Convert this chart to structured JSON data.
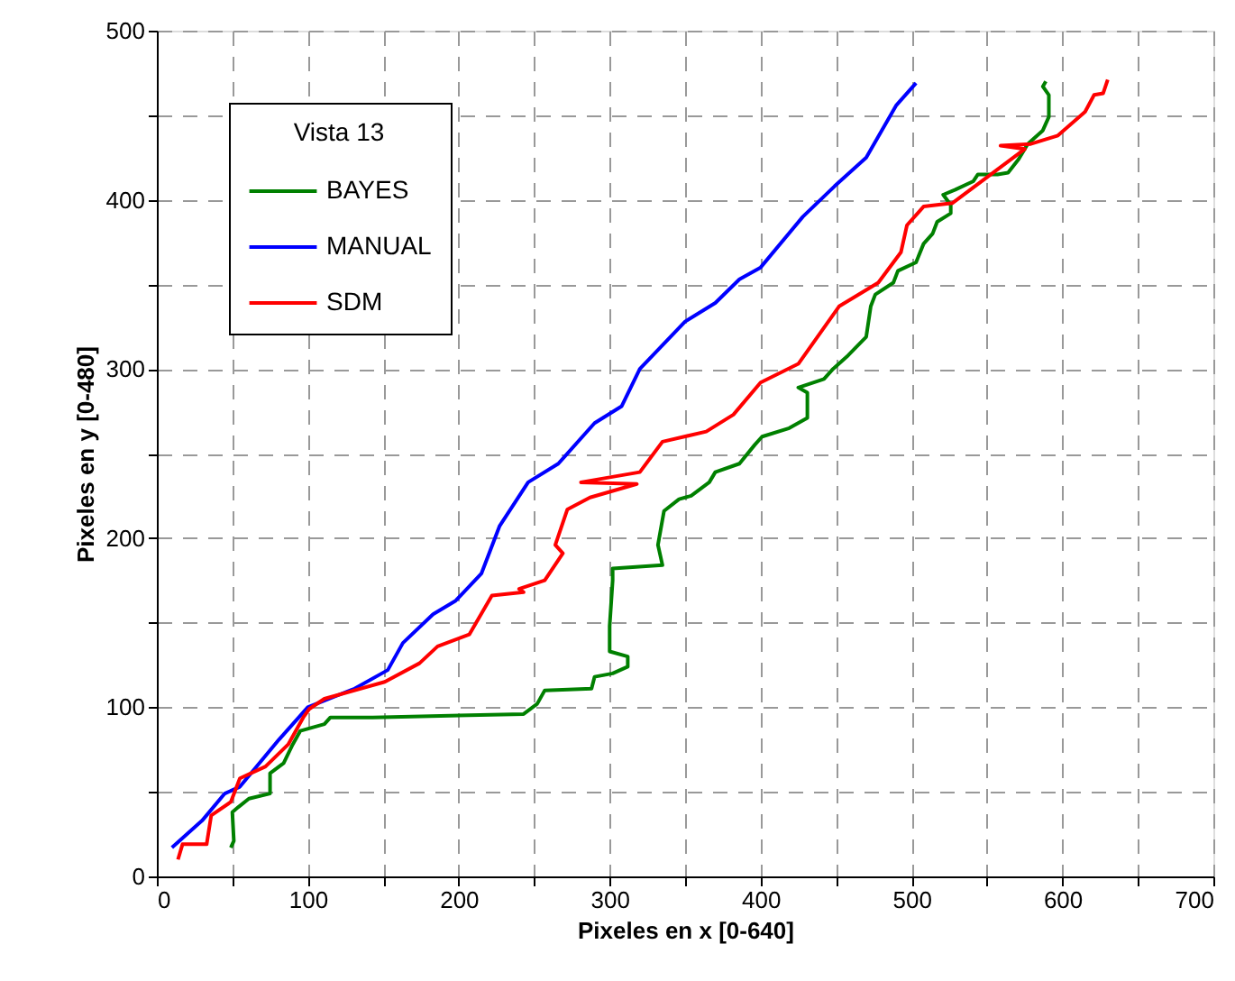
{
  "chart_data": {
    "type": "line",
    "xlabel": "Pixeles en x [0-640]",
    "ylabel": "Pixeles en y [0-480]",
    "legend_title": "Vista 13",
    "xlim": [
      0,
      700
    ],
    "ylim": [
      0,
      500
    ],
    "xticks": [
      0,
      {
        "value": 50,
        "label": null
      },
      100,
      {
        "value": 150,
        "label": null
      },
      200,
      {
        "value": 250,
        "label": null
      },
      300,
      {
        "value": 350,
        "label": null
      },
      400,
      {
        "value": 450,
        "label": null
      },
      500,
      {
        "value": 550,
        "label": null
      },
      600,
      {
        "value": 650,
        "label": null
      },
      700
    ],
    "yticks": [
      0,
      {
        "value": 50,
        "label": null
      },
      100,
      {
        "value": 150,
        "label": null
      },
      200,
      {
        "value": 250,
        "label": null
      },
      300,
      {
        "value": 350,
        "label": null
      },
      400,
      {
        "value": 450,
        "label": null
      },
      500
    ],
    "grid": true,
    "legend": "top left",
    "line_style": "solid",
    "marker": "none",
    "series": [
      {
        "name": "BAYES",
        "color": "#008000",
        "x": [
          49,
          51,
          50,
          54,
          61,
          75,
          75,
          84,
          90,
          95,
          111,
          115,
          143,
          243,
          252,
          257,
          288,
          290,
          302,
          312,
          312,
          300,
          300,
          302,
          302,
          335,
          332,
          336,
          346,
          354,
          366,
          370,
          386,
          396,
          401,
          419,
          431,
          431,
          425,
          442,
          448,
          458,
          470,
          473,
          476,
          488,
          491,
          503,
          508,
          514,
          517,
          526,
          526,
          521,
          529,
          541,
          544,
          557,
          564,
          571,
          577,
          587,
          591,
          591,
          587,
          589
        ],
        "values": [
          17,
          21,
          38,
          41,
          46,
          49,
          61,
          67,
          78,
          86,
          90,
          94,
          94,
          96,
          102,
          110,
          111,
          118,
          120,
          124,
          130,
          133,
          148,
          175,
          182,
          184,
          196,
          216,
          223,
          225,
          233,
          239,
          244,
          255,
          260,
          265,
          271,
          286,
          289,
          294,
          300,
          308,
          319,
          337,
          344,
          351,
          358,
          363,
          374,
          380,
          387,
          392,
          397,
          403,
          406,
          411,
          415,
          415,
          416,
          424,
          433,
          441,
          449,
          462,
          467,
          470
        ]
      },
      {
        "name": "MANUAL",
        "color": "#0000ff",
        "x": [
          10,
          30,
          45,
          55,
          81,
          100,
          131,
          153,
          163,
          183,
          198,
          215,
          227,
          246,
          266,
          290,
          308,
          320,
          350,
          370,
          386,
          400,
          428,
          449,
          470,
          490,
          503
        ],
        "values": [
          17,
          33,
          49,
          53,
          81,
          100,
          111,
          122,
          138,
          155,
          163,
          179,
          207,
          233,
          244,
          268,
          278,
          300,
          328,
          339,
          353,
          360,
          390,
          408,
          425,
          456,
          469
        ]
      },
      {
        "name": "SDM",
        "color": "#ff0000",
        "x": [
          14,
          17,
          33,
          36,
          49,
          55,
          72,
          87,
          97,
          101,
          111,
          151,
          174,
          186,
          207,
          222,
          243,
          240,
          257,
          269,
          264,
          272,
          287,
          318,
          281,
          320,
          335,
          364,
          382,
          400,
          425,
          452,
          478,
          493,
          497,
          508,
          527,
          575,
          559,
          579,
          597,
          615,
          621,
          627,
          630
        ],
        "values": [
          10,
          19,
          19,
          36,
          44,
          58,
          65,
          78,
          94,
          99,
          105,
          115,
          126,
          136,
          143,
          166,
          168,
          170,
          175,
          191,
          196,
          217,
          224,
          232,
          233,
          239,
          257,
          263,
          273,
          292,
          303,
          337,
          351,
          369,
          385,
          396,
          398,
          430,
          432,
          433,
          438,
          452,
          462,
          463,
          471
        ]
      }
    ]
  }
}
